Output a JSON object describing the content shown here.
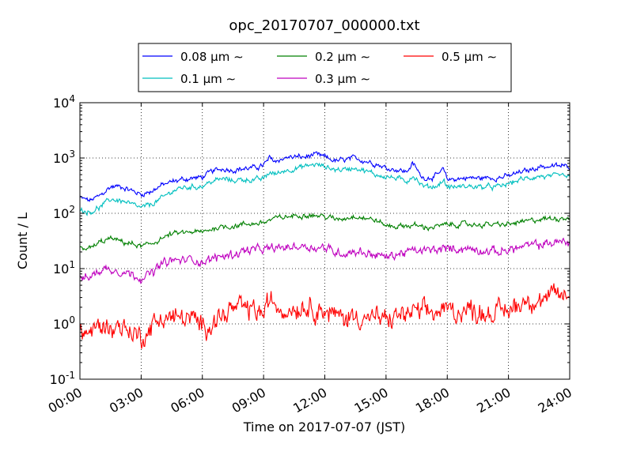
{
  "chart_data": {
    "type": "line",
    "title": "opc_20170707_000000.txt",
    "xlabel": "Time on 2017-07-07 (JST)",
    "ylabel": "Count / L",
    "yscale": "log",
    "ylim": [
      0.1,
      10000
    ],
    "y_ticks": [
      {
        "value": 0.1,
        "base": "10",
        "exp": "-1"
      },
      {
        "value": 1,
        "base": "10",
        "exp": "0"
      },
      {
        "value": 10,
        "base": "10",
        "exp": "1"
      },
      {
        "value": 100,
        "base": "10",
        "exp": "2"
      },
      {
        "value": 1000,
        "base": "10",
        "exp": "3"
      },
      {
        "value": 10000,
        "base": "10",
        "exp": "4"
      }
    ],
    "x_unit": "hour",
    "xlim": [
      0,
      24
    ],
    "x_ticks": [
      {
        "value": 0,
        "label": "00:00"
      },
      {
        "value": 3,
        "label": "03:00"
      },
      {
        "value": 6,
        "label": "06:00"
      },
      {
        "value": 9,
        "label": "09:00"
      },
      {
        "value": 12,
        "label": "12:00"
      },
      {
        "value": 15,
        "label": "15:00"
      },
      {
        "value": 18,
        "label": "18:00"
      },
      {
        "value": 21,
        "label": "21:00"
      },
      {
        "value": 24,
        "label": "24:00"
      }
    ],
    "grid": true,
    "legend_position": "top-center",
    "series": [
      {
        "name": "0.08 μm ∼",
        "color": "#0000ff",
        "noise": 0.03,
        "points": [
          [
            0,
            190
          ],
          [
            0.5,
            170
          ],
          [
            1,
            210
          ],
          [
            1.5,
            300
          ],
          [
            2,
            310
          ],
          [
            2.5,
            260
          ],
          [
            3,
            220
          ],
          [
            3.5,
            250
          ],
          [
            4,
            320
          ],
          [
            4.5,
            370
          ],
          [
            5,
            410
          ],
          [
            5.5,
            430
          ],
          [
            6,
            450
          ],
          [
            6.5,
            580
          ],
          [
            7,
            640
          ],
          [
            7.5,
            610
          ],
          [
            8,
            640
          ],
          [
            8.5,
            660
          ],
          [
            9,
            740
          ],
          [
            9.3,
            990
          ],
          [
            9.6,
            870
          ],
          [
            10,
            1000
          ],
          [
            10.5,
            1050
          ],
          [
            11,
            1030
          ],
          [
            11.5,
            1150
          ],
          [
            12,
            1050
          ],
          [
            12.5,
            880
          ],
          [
            13,
            920
          ],
          [
            13.5,
            1000
          ],
          [
            14,
            880
          ],
          [
            14.5,
            790
          ],
          [
            15,
            660
          ],
          [
            15.5,
            620
          ],
          [
            16,
            560
          ],
          [
            16.3,
            790
          ],
          [
            16.5,
            640
          ],
          [
            16.7,
            470
          ],
          [
            17,
            430
          ],
          [
            17.5,
            480
          ],
          [
            17.8,
            620
          ],
          [
            18,
            410
          ],
          [
            18.5,
            420
          ],
          [
            19,
            440
          ],
          [
            19.5,
            430
          ],
          [
            20,
            440
          ],
          [
            20.5,
            440
          ],
          [
            21,
            470
          ],
          [
            21.5,
            540
          ],
          [
            22,
            600
          ],
          [
            22.5,
            700
          ],
          [
            23,
            700
          ],
          [
            23.5,
            720
          ],
          [
            24,
            700
          ]
        ]
      },
      {
        "name": "0.1 μm ∼",
        "color": "#00bfbf",
        "noise": 0.03,
        "points": [
          [
            0,
            115
          ],
          [
            0.5,
            105
          ],
          [
            1,
            130
          ],
          [
            1.5,
            180
          ],
          [
            2,
            170
          ],
          [
            2.5,
            145
          ],
          [
            3,
            125
          ],
          [
            3.5,
            145
          ],
          [
            4,
            185
          ],
          [
            4.5,
            250
          ],
          [
            5,
            290
          ],
          [
            5.5,
            300
          ],
          [
            6,
            310
          ],
          [
            6.5,
            380
          ],
          [
            7,
            420
          ],
          [
            7.5,
            390
          ],
          [
            8,
            410
          ],
          [
            8.5,
            400
          ],
          [
            9,
            420
          ],
          [
            9.3,
            550
          ],
          [
            9.6,
            510
          ],
          [
            10,
            590
          ],
          [
            10.5,
            640
          ],
          [
            11,
            700
          ],
          [
            11.5,
            770
          ],
          [
            12,
            700
          ],
          [
            12.5,
            620
          ],
          [
            13,
            620
          ],
          [
            13.5,
            680
          ],
          [
            14,
            580
          ],
          [
            14.5,
            500
          ],
          [
            15,
            460
          ],
          [
            15.5,
            430
          ],
          [
            16,
            380
          ],
          [
            16.3,
            480
          ],
          [
            16.5,
            420
          ],
          [
            16.7,
            330
          ],
          [
            17,
            300
          ],
          [
            17.5,
            310
          ],
          [
            17.8,
            400
          ],
          [
            18,
            300
          ],
          [
            18.5,
            300
          ],
          [
            19,
            310
          ],
          [
            19.5,
            300
          ],
          [
            20,
            300
          ],
          [
            20.5,
            300
          ],
          [
            21,
            340
          ],
          [
            21.5,
            400
          ],
          [
            22,
            430
          ],
          [
            22.5,
            470
          ],
          [
            23,
            450
          ],
          [
            23.5,
            480
          ],
          [
            24,
            450
          ]
        ]
      },
      {
        "name": "0.2 μm ∼",
        "color": "#008000",
        "noise": 0.03,
        "points": [
          [
            0,
            24
          ],
          [
            0.5,
            23
          ],
          [
            1,
            30
          ],
          [
            1.5,
            35
          ],
          [
            2,
            31
          ],
          [
            2.5,
            28
          ],
          [
            3,
            25
          ],
          [
            3.5,
            28
          ],
          [
            4,
            35
          ],
          [
            4.5,
            42
          ],
          [
            5,
            44
          ],
          [
            5.5,
            46
          ],
          [
            6,
            45
          ],
          [
            6.5,
            53
          ],
          [
            7,
            58
          ],
          [
            7.5,
            58
          ],
          [
            8,
            63
          ],
          [
            8.5,
            65
          ],
          [
            9,
            68
          ],
          [
            9.5,
            80
          ],
          [
            10,
            85
          ],
          [
            10.5,
            90
          ],
          [
            11,
            95
          ],
          [
            11.5,
            92
          ],
          [
            12,
            88
          ],
          [
            12.5,
            78
          ],
          [
            13,
            82
          ],
          [
            13.5,
            90
          ],
          [
            14,
            82
          ],
          [
            14.5,
            75
          ],
          [
            15,
            60
          ],
          [
            15.5,
            58
          ],
          [
            16,
            60
          ],
          [
            16.5,
            60
          ],
          [
            17,
            55
          ],
          [
            17.5,
            58
          ],
          [
            18,
            62
          ],
          [
            18.5,
            63
          ],
          [
            19,
            63
          ],
          [
            19.5,
            62
          ],
          [
            20,
            63
          ],
          [
            20.5,
            62
          ],
          [
            21,
            63
          ],
          [
            21.5,
            68
          ],
          [
            22,
            72
          ],
          [
            22.5,
            78
          ],
          [
            23,
            80
          ],
          [
            23.5,
            82
          ],
          [
            24,
            85
          ]
        ]
      },
      {
        "name": "0.3 μm ∼",
        "color": "#bf00bf",
        "noise": 0.05,
        "points": [
          [
            0,
            6.5
          ],
          [
            0.5,
            7
          ],
          [
            1,
            9.5
          ],
          [
            1.5,
            10
          ],
          [
            2,
            9
          ],
          [
            2.5,
            8
          ],
          [
            3,
            7
          ],
          [
            3.5,
            8
          ],
          [
            4,
            12
          ],
          [
            4.5,
            14
          ],
          [
            5,
            14
          ],
          [
            5.5,
            15
          ],
          [
            6,
            13
          ],
          [
            6.5,
            15
          ],
          [
            7,
            17
          ],
          [
            7.5,
            18
          ],
          [
            8,
            21
          ],
          [
            8.5,
            22
          ],
          [
            9,
            22
          ],
          [
            9.5,
            23
          ],
          [
            10,
            24
          ],
          [
            10.5,
            25
          ],
          [
            11,
            26
          ],
          [
            11.5,
            24
          ],
          [
            12,
            24
          ],
          [
            12.5,
            20
          ],
          [
            13,
            19
          ],
          [
            13.5,
            21
          ],
          [
            14,
            19
          ],
          [
            14.5,
            18
          ],
          [
            15,
            16
          ],
          [
            15.5,
            18
          ],
          [
            16,
            20
          ],
          [
            16.5,
            21
          ],
          [
            17,
            21
          ],
          [
            17.5,
            22
          ],
          [
            18,
            23
          ],
          [
            18.5,
            23
          ],
          [
            19,
            23
          ],
          [
            19.5,
            22
          ],
          [
            20,
            21
          ],
          [
            20.5,
            20
          ],
          [
            21,
            22
          ],
          [
            21.5,
            24
          ],
          [
            22,
            26
          ],
          [
            22.5,
            27
          ],
          [
            23,
            29
          ],
          [
            23.5,
            30
          ],
          [
            24,
            31
          ]
        ]
      },
      {
        "name": "0.5 μm ∼",
        "color": "#ff0000",
        "noise": 0.12,
        "points": [
          [
            0,
            0.7
          ],
          [
            0.5,
            0.7
          ],
          [
            1,
            0.9
          ],
          [
            1.5,
            0.9
          ],
          [
            2,
            0.9
          ],
          [
            2.5,
            0.75
          ],
          [
            3,
            0.55
          ],
          [
            3.5,
            0.9
          ],
          [
            4,
            1.3
          ],
          [
            4.5,
            1.3
          ],
          [
            5,
            1.3
          ],
          [
            5.5,
            1.2
          ],
          [
            6,
            0.9
          ],
          [
            6.5,
            1.1
          ],
          [
            7,
            1.4
          ],
          [
            7.5,
            1.9
          ],
          [
            8,
            1.9
          ],
          [
            8.5,
            1.8
          ],
          [
            9,
            1.5
          ],
          [
            9.3,
            2.6
          ],
          [
            9.6,
            2.3
          ],
          [
            10,
            1.8
          ],
          [
            10.5,
            2.0
          ],
          [
            11,
            2.1
          ],
          [
            11.5,
            2.0
          ],
          [
            12,
            1.7
          ],
          [
            12.5,
            1.4
          ],
          [
            13,
            1.3
          ],
          [
            13.5,
            1.4
          ],
          [
            14,
            1.3
          ],
          [
            14.5,
            1.3
          ],
          [
            15,
            1.1
          ],
          [
            15.5,
            1.4
          ],
          [
            16,
            1.5
          ],
          [
            16.5,
            1.6
          ],
          [
            17,
            1.6
          ],
          [
            17.5,
            1.6
          ],
          [
            18,
            1.8
          ],
          [
            18.5,
            1.7
          ],
          [
            19,
            1.8
          ],
          [
            19.5,
            1.7
          ],
          [
            20,
            1.6
          ],
          [
            20.5,
            1.6
          ],
          [
            21,
            1.8
          ],
          [
            21.5,
            2.3
          ],
          [
            22,
            2.9
          ],
          [
            22.5,
            2.6
          ],
          [
            23,
            2.9
          ],
          [
            23.5,
            3.3
          ],
          [
            24,
            3.3
          ]
        ]
      }
    ]
  }
}
